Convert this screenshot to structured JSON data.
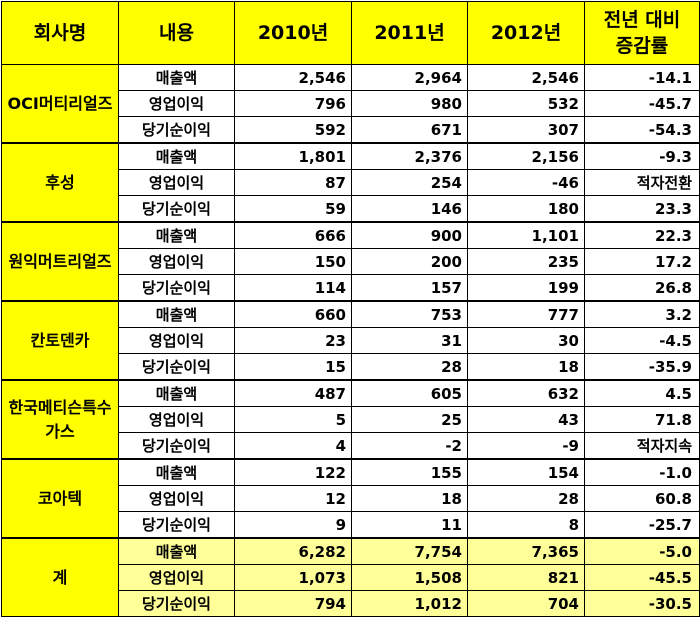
{
  "headers": [
    "회사명",
    "내용",
    "2010년",
    "2011년",
    "2012년",
    "전년 대비\n증감률"
  ],
  "companies": [
    {
      "name": "OCI머티리얼즈",
      "rows": [
        {
          "item": "매출액",
          "y2010": "2,546",
          "y2011": "2,964",
          "y2012": "2,546",
          "change": "-14.1"
        },
        {
          "item": "영업이익",
          "y2010": "796",
          "y2011": "980",
          "y2012": "532",
          "change": "-45.7"
        },
        {
          "item": "당기순이익",
          "y2010": "592",
          "y2011": "671",
          "y2012": "307",
          "change": "-54.3"
        }
      ]
    },
    {
      "name": "후성",
      "rows": [
        {
          "item": "매출액",
          "y2010": "1,801",
          "y2011": "2,376",
          "y2012": "2,156",
          "change": "-9.3"
        },
        {
          "item": "영업이익",
          "y2010": "87",
          "y2011": "254",
          "y2012": "-46",
          "change": "적자전환"
        },
        {
          "item": "당기순이익",
          "y2010": "59",
          "y2011": "146",
          "y2012": "180",
          "change": "23.3"
        }
      ]
    },
    {
      "name": "원익머트리얼즈",
      "rows": [
        {
          "item": "매출액",
          "y2010": "666",
          "y2011": "900",
          "y2012": "1,101",
          "change": "22.3"
        },
        {
          "item": "영업이익",
          "y2010": "150",
          "y2011": "200",
          "y2012": "235",
          "change": "17.2"
        },
        {
          "item": "당기순이익",
          "y2010": "114",
          "y2011": "157",
          "y2012": "199",
          "change": "26.8"
        }
      ]
    },
    {
      "name": "칸토덴카",
      "rows": [
        {
          "item": "매출액",
          "y2010": "660",
          "y2011": "753",
          "y2012": "777",
          "change": "3.2"
        },
        {
          "item": "영업이익",
          "y2010": "23",
          "y2011": "31",
          "y2012": "30",
          "change": "-4.5"
        },
        {
          "item": "당기순이익",
          "y2010": "15",
          "y2011": "28",
          "y2012": "18",
          "change": "-35.9"
        }
      ]
    },
    {
      "name": "한국메티슨특수가스",
      "rows": [
        {
          "item": "매출액",
          "y2010": "487",
          "y2011": "605",
          "y2012": "632",
          "change": "4.5"
        },
        {
          "item": "영업이익",
          "y2010": "5",
          "y2011": "25",
          "y2012": "43",
          "change": "71.8"
        },
        {
          "item": "당기순이익",
          "y2010": "4",
          "y2011": "-2",
          "y2012": "-9",
          "change": "적자지속"
        }
      ]
    },
    {
      "name": "코아텍",
      "rows": [
        {
          "item": "매출액",
          "y2010": "122",
          "y2011": "155",
          "y2012": "154",
          "change": "-1.0"
        },
        {
          "item": "영업이익",
          "y2010": "12",
          "y2011": "18",
          "y2012": "28",
          "change": "60.8"
        },
        {
          "item": "당기순이익",
          "y2010": "9",
          "y2011": "11",
          "y2012": "8",
          "change": "-25.7"
        }
      ]
    },
    {
      "name": "계",
      "total": true,
      "rows": [
        {
          "item": "매출액",
          "y2010": "6,282",
          "y2011": "7,754",
          "y2012": "7,365",
          "change": "-5.0"
        },
        {
          "item": "영업이익",
          "y2010": "1,073",
          "y2011": "1,508",
          "y2012": "821",
          "change": "-45.5"
        },
        {
          "item": "당기순이익",
          "y2010": "794",
          "y2011": "1,012",
          "y2012": "704",
          "change": "-30.5"
        }
      ]
    }
  ]
}
